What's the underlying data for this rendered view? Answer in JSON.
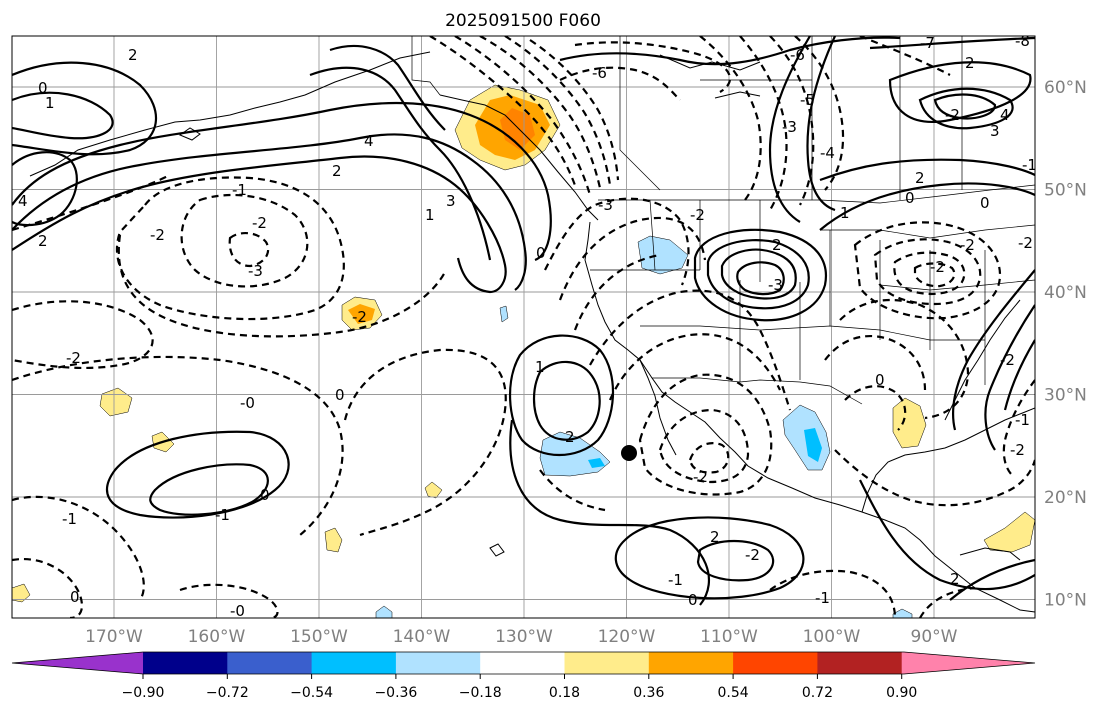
{
  "title": "2025091500 F060",
  "map": {
    "lon_ticks": [
      "170°W",
      "160°W",
      "150°W",
      "140°W",
      "130°W",
      "120°W",
      "110°W",
      "100°W",
      "90°W"
    ],
    "lat_ticks": [
      "60°N",
      "50°N",
      "40°N",
      "30°N",
      "20°N",
      "10°N"
    ],
    "grid": true,
    "contour_labels": [
      "2",
      "0",
      "1",
      "4",
      "2",
      "-2",
      "-1",
      "4",
      "2",
      "1",
      "3",
      "-3",
      "-2",
      "-6",
      "-2",
      "-2",
      "-3",
      "0",
      "-2",
      "2",
      "-3",
      "-3",
      "-4",
      "-5",
      "-6",
      "-7",
      "-8",
      "1",
      "-2",
      "3",
      "0",
      "2",
      "4",
      "2",
      "0",
      "-1",
      "2",
      "-0",
      "-2",
      "0",
      "-2",
      "-2",
      "-2",
      "-2",
      "2",
      "-2",
      "0",
      "-1",
      "-2",
      "-1",
      "2",
      "1",
      "0",
      "-1",
      "0",
      "-0",
      "-1",
      "0",
      "-1"
    ],
    "marker": {
      "name": "black-dot",
      "lon": -120,
      "lat": 24
    }
  },
  "colorbar": {
    "ticks": [
      "−0.90",
      "−0.72",
      "−0.54",
      "−0.36",
      "−0.18",
      "0.18",
      "0.36",
      "0.54",
      "0.72",
      "0.90"
    ],
    "colors": [
      "#9932cc",
      "#00008b",
      "#3a5fcd",
      "#00bfff",
      "#b0e2ff",
      "#ffffff",
      "#ffec8b",
      "#ffa500",
      "#ff4500",
      "#b22222",
      "#ff82ab",
      "#ff82ab"
    ]
  }
}
